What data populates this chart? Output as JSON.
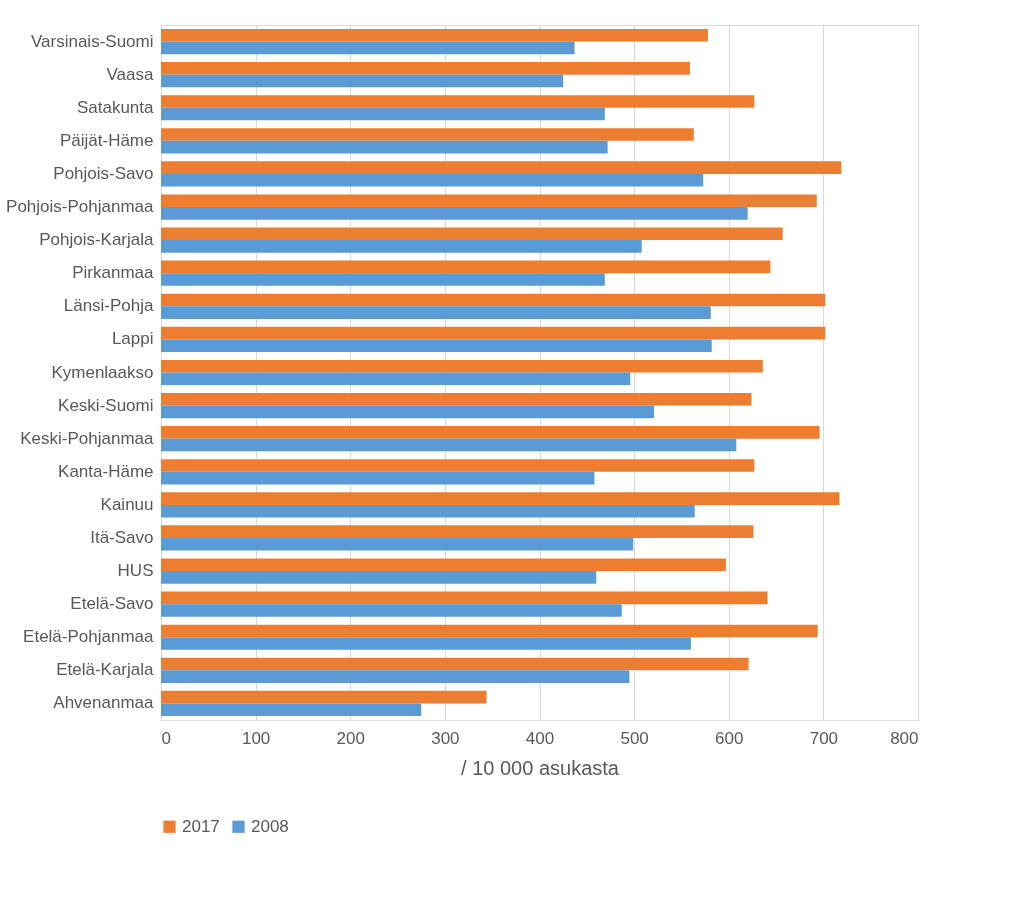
{
  "chart_data": {
    "type": "bar",
    "orientation": "horizontal",
    "xlabel": "/ 10 000 asukasta",
    "categories": [
      "Varsinais-Suomi",
      "Vaasa",
      "Satakunta",
      "Päijät-Häme",
      "Pohjois-Savo",
      "Pohjois-Pohjanmaa",
      "Pohjois-Karjala",
      "Pirkanmaa",
      "Länsi-Pohja",
      "Lappi",
      "Kymenlaakso",
      "Keski-Suomi",
      "Keski-Pohjanmaa",
      "Kanta-Häme",
      "Kainuu",
      "Itä-Savo",
      "HUS",
      "Etelä-Savo",
      "Etelä-Pohjanmaa",
      "Etelä-Karjala",
      "Ahvenanmaa"
    ],
    "series": [
      {
        "name": "2017",
        "color": "#ed7d31",
        "values": [
          578,
          559,
          627,
          563,
          719,
          693,
          657,
          644,
          702,
          702,
          636,
          624,
          696,
          627,
          717,
          626,
          597,
          641,
          694,
          621,
          344
        ]
      },
      {
        "name": "2008",
        "color": "#5b9bd5",
        "values": [
          437,
          425,
          469,
          472,
          573,
          620,
          508,
          469,
          581,
          582,
          496,
          521,
          608,
          458,
          564,
          499,
          460,
          487,
          560,
          495,
          275
        ]
      }
    ],
    "xlim": [
      0,
      800
    ],
    "xticks": [
      0,
      100,
      200,
      300,
      400,
      500,
      600,
      700,
      800
    ],
    "grid": "x",
    "legend": "bottom"
  }
}
